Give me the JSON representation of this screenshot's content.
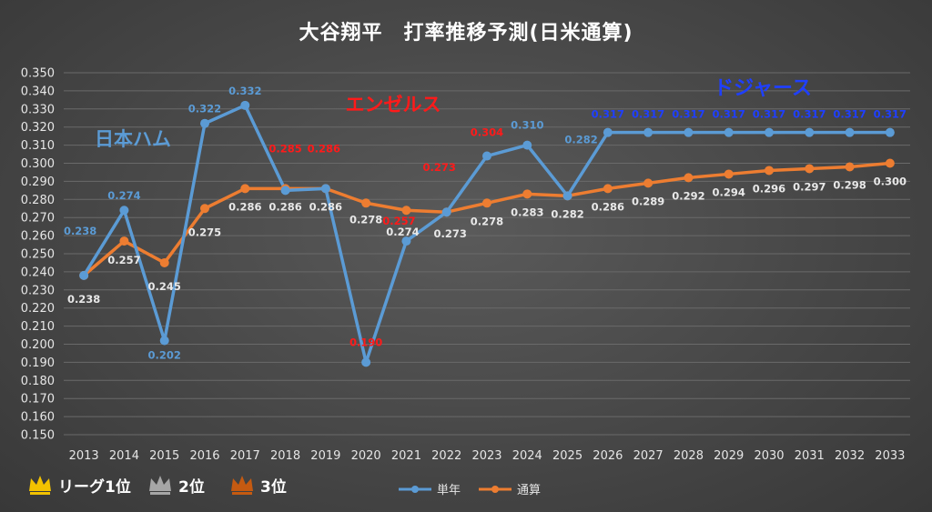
{
  "title": "大谷翔平　打率推移予測(日米通算)",
  "colors": {
    "single": "#5b9bd5",
    "cumulative": "#ed7d31",
    "label_white": "#e8e8e8",
    "label_red": "#ff1a1a",
    "label_blue_dark": "#1f3fff",
    "label_blue": "#5b9bd5",
    "grid": "#6a6a6a",
    "gold": "#f2c200",
    "silver": "#a6a6a6",
    "bronze": "#c55a11"
  },
  "teams": [
    {
      "name": "日本ハム",
      "color": "#5b9bd5"
    },
    {
      "name": "エンゼルス",
      "color": "#ff1a1a"
    },
    {
      "name": "ドジャース",
      "color": "#1f3fff"
    }
  ],
  "legend": {
    "crowns": [
      {
        "label": "リーグ1位",
        "icon": "gold-crown-icon",
        "color": "#f2c200"
      },
      {
        "label": "2位",
        "icon": "silver-crown-icon",
        "color": "#a6a6a6"
      },
      {
        "label": "3位",
        "icon": "bronze-crown-icon",
        "color": "#c55a11"
      }
    ]
  },
  "chart_data": {
    "type": "line",
    "categories": [
      "2013",
      "2014",
      "2015",
      "2016",
      "2017",
      "2018",
      "2019",
      "2020",
      "2021",
      "2022",
      "2023",
      "2024",
      "2025",
      "2026",
      "2027",
      "2028",
      "2029",
      "2030",
      "2031",
      "2032",
      "2033"
    ],
    "ylim": [
      0.15,
      0.35
    ],
    "ytick_step": 0.01,
    "grid": true,
    "legend_position": "bottom",
    "series": [
      {
        "name": "単年",
        "color": "#5b9bd5",
        "values": [
          0.238,
          0.274,
          0.202,
          0.322,
          0.332,
          0.285,
          0.286,
          0.19,
          0.257,
          0.273,
          0.304,
          0.31,
          0.282,
          0.317,
          0.317,
          0.317,
          0.317,
          0.317,
          0.317,
          0.317,
          0.317
        ],
        "labels": [
          "0.238",
          "0.274",
          "0.202",
          "0.322",
          "0.332",
          "0.285",
          "0.286",
          "0.190",
          "0.257",
          "0.273",
          "0.304",
          "0.310",
          "0.282",
          "0.317",
          "0.317",
          "0.317",
          "0.317",
          "0.317",
          "0.317",
          "0.317",
          "0.317"
        ],
        "label_colors": [
          "blue",
          "blue",
          "blue",
          "blue",
          "blue",
          "red",
          "red",
          "red",
          "red",
          "red",
          "red",
          "blue",
          "blue",
          "dark",
          "dark",
          "dark",
          "dark",
          "dark",
          "dark",
          "dark",
          "dark"
        ]
      },
      {
        "name": "通算",
        "color": "#ed7d31",
        "values": [
          0.238,
          0.257,
          0.245,
          0.275,
          0.286,
          0.286,
          0.286,
          0.278,
          0.274,
          0.273,
          0.278,
          0.283,
          0.282,
          0.286,
          0.289,
          0.292,
          0.294,
          0.296,
          0.297,
          0.298,
          0.3
        ],
        "labels": [
          "0.238",
          "0.257",
          "0.245",
          "0.275",
          "0.286",
          "0.286",
          "0.286",
          "0.278",
          "0.274",
          "0.273",
          "0.278",
          "0.283",
          "0.282",
          "0.286",
          "0.289",
          "0.292",
          "0.294",
          "0.296",
          "0.297",
          "0.298",
          "0.300"
        ]
      }
    ]
  }
}
